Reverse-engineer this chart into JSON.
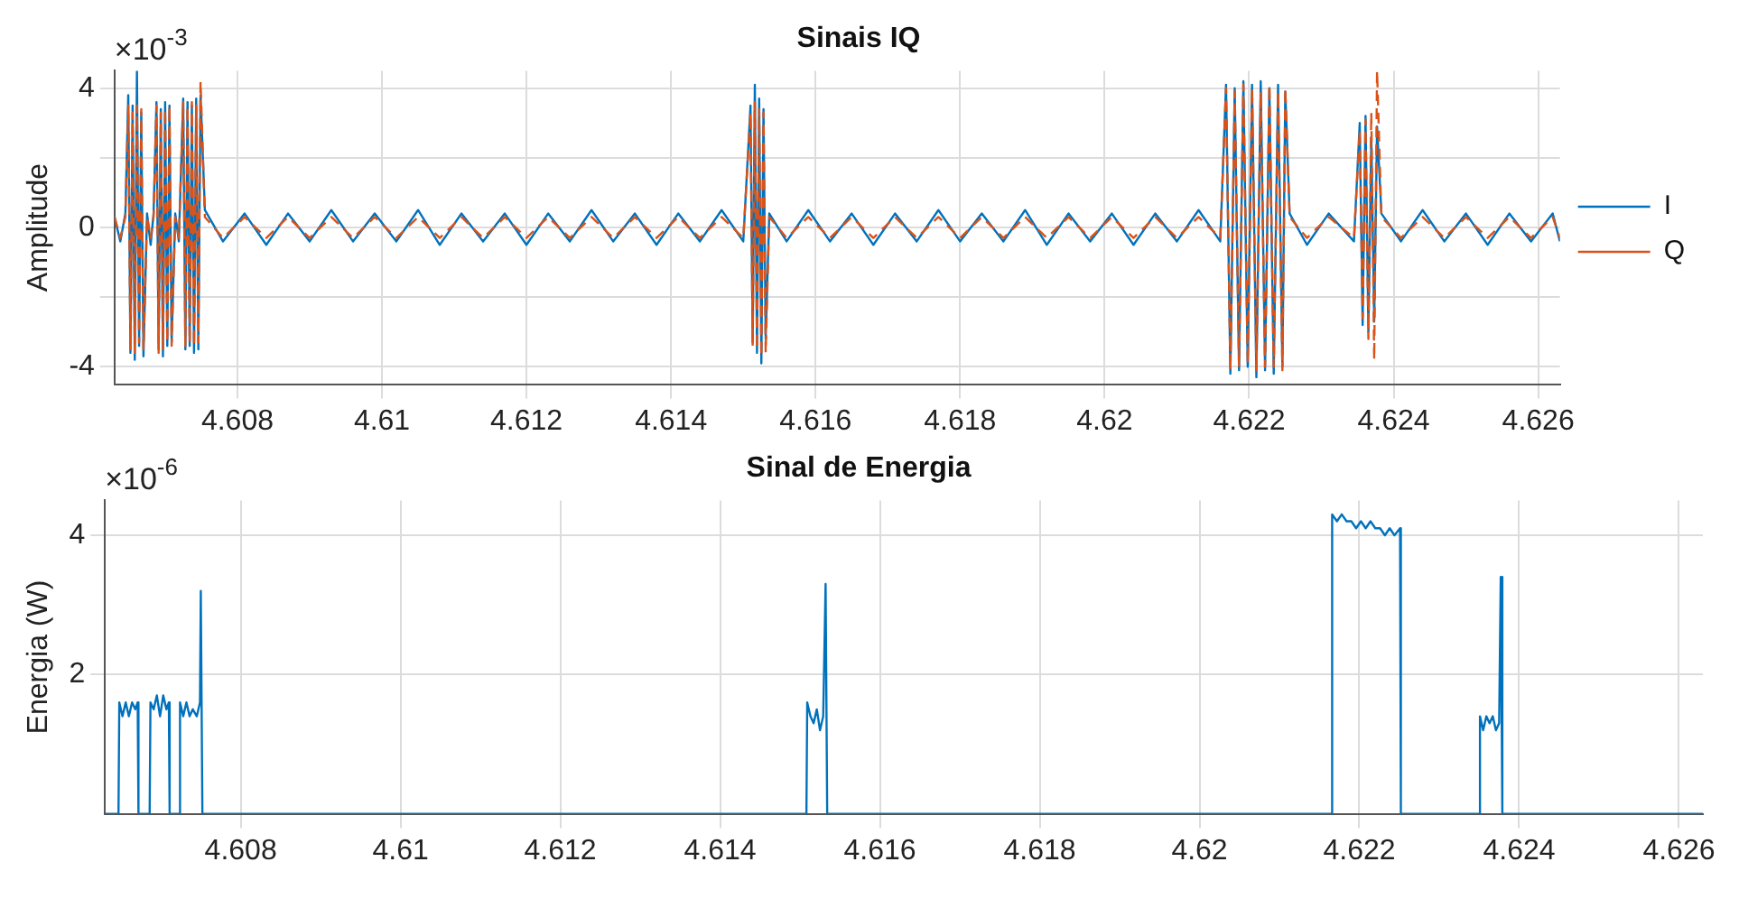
{
  "chart_data": [
    {
      "type": "line",
      "title": "Sinais IQ",
      "ylabel": "Amplitude",
      "annotations": [
        "×10$^{-3}$"
      ],
      "grid": true,
      "legend": "right",
      "x": [
        4.6063,
        4.60638,
        4.60645,
        4.60649,
        4.60652,
        4.60655,
        4.60658,
        4.60661,
        4.60664,
        4.60667,
        4.6067,
        4.60675,
        4.6068,
        4.60684,
        4.60688,
        4.60691,
        4.60694,
        4.60697,
        4.607,
        4.60703,
        4.60706,
        4.60709,
        4.60714,
        4.60719,
        4.60725,
        4.60728,
        4.60731,
        4.60734,
        4.60737,
        4.6074,
        4.60743,
        4.60746,
        4.60749,
        4.60755,
        4.6078,
        4.6081,
        4.6084,
        4.6087,
        4.609,
        4.6093,
        4.6096,
        4.6099,
        4.6102,
        4.6105,
        4.6108,
        4.6111,
        4.6114,
        4.6117,
        4.612,
        4.6123,
        4.6126,
        4.6129,
        4.6132,
        4.6135,
        4.6138,
        4.6141,
        4.6144,
        4.6147,
        4.615,
        4.6151,
        4.61513,
        4.61516,
        4.61519,
        4.61522,
        4.61525,
        4.61528,
        4.61531,
        4.61536,
        4.6156,
        4.6159,
        4.6162,
        4.6165,
        4.6168,
        4.6171,
        4.6174,
        4.6177,
        4.618,
        4.6183,
        4.6186,
        4.6189,
        4.6192,
        4.6195,
        4.6198,
        4.6201,
        4.6204,
        4.6207,
        4.621,
        4.6213,
        4.6216,
        4.62168,
        4.62174,
        4.6218,
        4.62186,
        4.62192,
        4.62198,
        4.62204,
        4.6221,
        4.62216,
        4.62222,
        4.62228,
        4.62234,
        4.6224,
        4.62246,
        4.6225,
        4.62256,
        4.6228,
        4.6231,
        4.62345,
        4.62353,
        4.62357,
        4.62361,
        4.62365,
        4.62369,
        4.62373,
        4.62377,
        4.62383,
        4.6241,
        4.6244,
        4.6247,
        4.625,
        4.6253,
        4.6256,
        4.6259,
        4.6262,
        4.6263
      ],
      "series": [
        {
          "name": "I",
          "color": "#0072bd",
          "line_style": "solid",
          "values": [
            0.3,
            -0.4,
            0.4,
            3.8,
            -3.6,
            3.5,
            -3.8,
            4.5,
            -3.4,
            3.3,
            -3.7,
            0.4,
            -0.5,
            0.4,
            3.6,
            -3.5,
            3.4,
            -3.7,
            3.6,
            -3.4,
            3.5,
            -3.3,
            0.4,
            -0.4,
            3.7,
            -3.5,
            3.6,
            -3.4,
            3.5,
            -3.6,
            3.7,
            -3.5,
            3.8,
            0.5,
            -0.4,
            0.4,
            -0.5,
            0.4,
            -0.4,
            0.5,
            -0.4,
            0.4,
            -0.4,
            0.5,
            -0.5,
            0.4,
            -0.4,
            0.4,
            -0.5,
            0.4,
            -0.4,
            0.5,
            -0.4,
            0.4,
            -0.5,
            0.4,
            -0.4,
            0.5,
            -0.4,
            3.5,
            -3.3,
            4.1,
            -3.6,
            3.7,
            -3.9,
            3.4,
            -3.2,
            0.4,
            -0.4,
            0.5,
            -0.4,
            0.4,
            -0.5,
            0.4,
            -0.4,
            0.5,
            -0.4,
            0.4,
            -0.4,
            0.5,
            -0.5,
            0.4,
            -0.4,
            0.4,
            -0.5,
            0.4,
            -0.4,
            0.5,
            -0.4,
            4.1,
            -4.2,
            4.0,
            -4.1,
            4.2,
            -4.0,
            4.1,
            -4.3,
            4.2,
            -4.1,
            4.0,
            -4.2,
            4.1,
            -4.0,
            3.9,
            0.4,
            -0.5,
            0.4,
            -0.4,
            3.0,
            -2.8,
            3.2,
            -3.0,
            2.6,
            -2.7,
            2.9,
            0.4,
            -0.4,
            0.5,
            -0.4,
            0.4,
            -0.5,
            0.4,
            -0.4,
            0.4,
            -0.4
          ]
        },
        {
          "name": "Q",
          "color": "#d95319",
          "line_style": "dashed",
          "values": [
            0.3,
            -0.3,
            0.3,
            3.5,
            -3.5,
            3.3,
            -3.6,
            3.5,
            -3.3,
            3.4,
            -3.5,
            0.3,
            -0.3,
            0.3,
            3.5,
            -3.6,
            3.3,
            -3.5,
            3.4,
            -3.3,
            3.5,
            -3.4,
            0.3,
            -0.3,
            3.6,
            -3.4,
            3.5,
            -3.3,
            3.6,
            -3.4,
            3.5,
            -3.3,
            4.2,
            0.3,
            -0.3,
            0.3,
            -0.3,
            0.3,
            -0.3,
            0.3,
            -0.3,
            0.3,
            -0.3,
            0.3,
            -0.3,
            0.3,
            -0.3,
            0.3,
            -0.3,
            0.3,
            -0.3,
            0.3,
            -0.3,
            0.3,
            -0.3,
            0.3,
            -0.3,
            0.3,
            -0.3,
            3.3,
            -3.4,
            3.6,
            -3.5,
            3.4,
            -3.7,
            3.3,
            -3.6,
            0.3,
            -0.3,
            0.3,
            -0.3,
            0.3,
            -0.3,
            0.3,
            -0.3,
            0.3,
            -0.3,
            0.3,
            -0.3,
            0.3,
            -0.3,
            0.3,
            -0.3,
            0.3,
            -0.3,
            0.3,
            -0.3,
            0.3,
            -0.3,
            4.0,
            -4.1,
            3.9,
            -4.0,
            4.1,
            -3.9,
            4.0,
            -4.1,
            3.9,
            -4.0,
            4.1,
            -4.0,
            3.9,
            -4.1,
            4.0,
            0.3,
            -0.3,
            0.3,
            -0.3,
            2.8,
            -2.6,
            3.1,
            -3.2,
            3.3,
            -3.8,
            4.5,
            0.3,
            -0.3,
            0.3,
            -0.3,
            0.3,
            -0.3,
            0.3,
            -0.3,
            0.3,
            -0.3
          ]
        }
      ],
      "xlim": [
        4.6063,
        4.6263
      ],
      "xticks": [
        4.608,
        4.61,
        4.612,
        4.614,
        4.616,
        4.618,
        4.62,
        4.622,
        4.624,
        4.626
      ],
      "ylim": [
        -4.5,
        4.5
      ],
      "yticks": [
        -4,
        {
          "value": -2,
          "label": null
        },
        0,
        {
          "value": 2,
          "label": null
        },
        4
      ]
    },
    {
      "type": "line",
      "title": "Sinal de Energia",
      "ylabel": "Energia (W)",
      "annotations": [
        "×10$^{-6}$"
      ],
      "grid": true,
      "x": [
        4.6063,
        4.60647,
        4.60648,
        4.60652,
        4.60656,
        4.6066,
        4.60664,
        4.60668,
        4.60671,
        4.60672,
        4.60686,
        4.60687,
        4.60691,
        4.60695,
        4.60699,
        4.60703,
        4.60707,
        4.6071,
        4.60711,
        4.60723,
        4.60724,
        4.60728,
        4.60732,
        4.60736,
        4.6074,
        4.60745,
        4.60749,
        4.6075,
        4.60752,
        4.61508,
        4.61509,
        4.61513,
        4.61517,
        4.61521,
        4.61525,
        4.61529,
        4.61532,
        4.61534,
        4.62165,
        4.62166,
        4.62172,
        4.62178,
        4.62184,
        4.6219,
        4.62196,
        4.62202,
        4.62208,
        4.62214,
        4.6222,
        4.62226,
        4.62232,
        4.62238,
        4.62244,
        4.62251,
        4.62252,
        4.6235,
        4.62351,
        4.62355,
        4.62359,
        4.62363,
        4.62367,
        4.62371,
        4.62375,
        4.62377,
        4.62379,
        4.6263
      ],
      "series": [
        {
          "color": "#0072bd",
          "values": [
            0,
            0,
            1.6,
            1.4,
            1.6,
            1.4,
            1.6,
            1.5,
            1.6,
            0,
            0,
            1.6,
            1.5,
            1.7,
            1.4,
            1.7,
            1.5,
            1.6,
            0,
            0,
            1.6,
            1.4,
            1.6,
            1.4,
            1.5,
            1.4,
            1.6,
            3.2,
            0,
            0,
            1.6,
            1.4,
            1.3,
            1.5,
            1.2,
            1.4,
            3.3,
            0,
            0,
            4.3,
            4.2,
            4.3,
            4.2,
            4.2,
            4.1,
            4.2,
            4.1,
            4.2,
            4.1,
            4.1,
            4.0,
            4.1,
            4.0,
            4.1,
            0,
            0,
            1.4,
            1.2,
            1.4,
            1.3,
            1.4,
            1.2,
            1.3,
            3.4,
            0,
            0
          ]
        }
      ],
      "xlim": [
        4.6063,
        4.6263
      ],
      "xticks": [
        4.608,
        4.61,
        4.612,
        4.614,
        4.616,
        4.618,
        4.62,
        4.622,
        4.624,
        4.626
      ],
      "ylim": [
        0,
        4.5
      ],
      "yticks": [
        2,
        4
      ]
    }
  ]
}
